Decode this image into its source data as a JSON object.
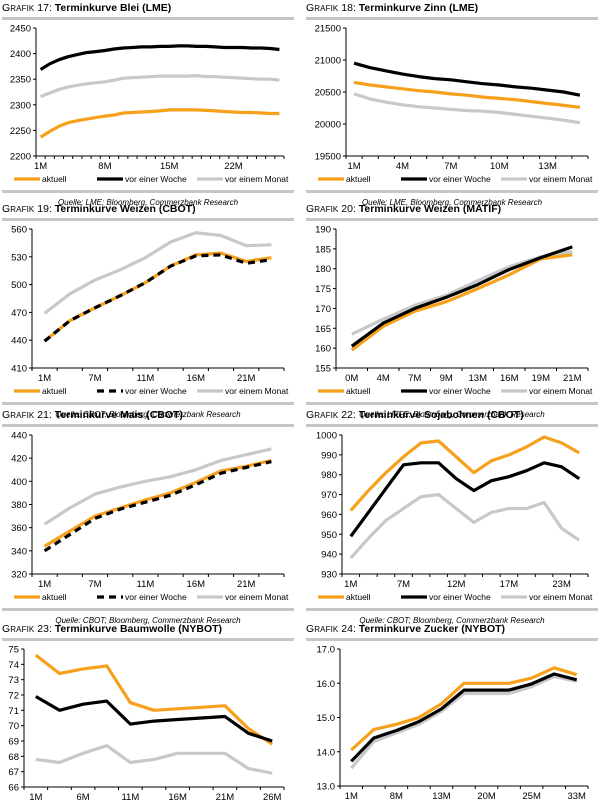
{
  "legend_labels": {
    "aktuell": "aktuell",
    "woche": "vor einer Woche",
    "monat": "vor einem Monat"
  },
  "colors": {
    "aktuell": "#f7a01c",
    "woche": "#000000",
    "monat": "#c8c8c8",
    "rule": "#c6c6c6"
  },
  "chart_data": [
    {
      "id": "g17",
      "type": "line",
      "prefix_cap": "G",
      "prefix_rest": "RAFIK",
      "number": "17:",
      "title": "Terminkurve Blei (LME)",
      "source": "Quelle: LME; Bloomberg, Commerzbank Research",
      "ylim": [
        2200,
        2450
      ],
      "yticks": [
        "2200",
        "2250",
        "2300",
        "2350",
        "2400",
        "2450"
      ],
      "yticks_values": [
        2200,
        2250,
        2300,
        2350,
        2400,
        2450
      ],
      "xtick_labels": [
        "1M",
        "8M",
        "15M",
        "22M"
      ],
      "xtick_indices": [
        0,
        7,
        14,
        21
      ],
      "n_points": 27,
      "legend_style": [
        "solid",
        "solid",
        "solid"
      ],
      "series": [
        {
          "name": "aktuell",
          "key": "aktuell",
          "values": [
            2237,
            2248,
            2258,
            2265,
            2269,
            2272,
            2275,
            2278,
            2280,
            2284,
            2285,
            2286,
            2287,
            2288,
            2290,
            2290,
            2290,
            2290,
            2289,
            2288,
            2287,
            2286,
            2285,
            2285,
            2284,
            2283,
            2283
          ]
        },
        {
          "name": "vor einer Woche",
          "key": "woche",
          "values": [
            2369,
            2380,
            2388,
            2394,
            2398,
            2402,
            2404,
            2406,
            2409,
            2411,
            2412,
            2413,
            2413,
            2414,
            2414,
            2415,
            2415,
            2414,
            2414,
            2413,
            2412,
            2412,
            2412,
            2411,
            2411,
            2410,
            2408
          ]
        },
        {
          "name": "vor einem Monat",
          "key": "monat",
          "values": [
            2316,
            2323,
            2330,
            2335,
            2338,
            2341,
            2343,
            2345,
            2348,
            2352,
            2353,
            2354,
            2355,
            2356,
            2356,
            2356,
            2356,
            2357,
            2355,
            2355,
            2354,
            2353,
            2352,
            2351,
            2350,
            2350,
            2348
          ]
        }
      ]
    },
    {
      "id": "g18",
      "type": "line",
      "prefix_cap": "G",
      "prefix_rest": "RAFIK",
      "number": "18:",
      "title": "Terminkurve Zinn (LME)",
      "source": "Quelle: LME, Bloomberg, Commerzbank Research",
      "ylim": [
        19500,
        21500
      ],
      "yticks": [
        "19500",
        "20000",
        "20500",
        "21000",
        "21500"
      ],
      "yticks_values": [
        19500,
        20000,
        20500,
        21000,
        21500
      ],
      "xtick_labels": [
        "1M",
        "4M",
        "7M",
        "10M",
        "13M"
      ],
      "xtick_indices": [
        0,
        3,
        6,
        9,
        12
      ],
      "n_points": 15,
      "legend_style": [
        "solid",
        "solid",
        "solid"
      ],
      "series": [
        {
          "name": "aktuell",
          "key": "aktuell",
          "values": [
            20650,
            20610,
            20580,
            20550,
            20520,
            20500,
            20470,
            20450,
            20420,
            20400,
            20380,
            20350,
            20320,
            20290,
            20260
          ]
        },
        {
          "name": "vor einer Woche",
          "key": "woche",
          "values": [
            20950,
            20880,
            20830,
            20780,
            20740,
            20710,
            20690,
            20660,
            20630,
            20610,
            20580,
            20560,
            20530,
            20500,
            20450
          ]
        },
        {
          "name": "vor einem Monat",
          "key": "monat",
          "values": [
            20470,
            20390,
            20340,
            20300,
            20270,
            20250,
            20230,
            20210,
            20200,
            20180,
            20150,
            20120,
            20090,
            20060,
            20020
          ]
        }
      ]
    },
    {
      "id": "g19",
      "type": "line",
      "prefix_cap": "G",
      "prefix_rest": "RAFIK",
      "number": "19:",
      "title": "Terminkurve Weizen (CBOT)",
      "source": "Quelle: CBOT; Bloomberg, Commerzbank Research",
      "ylim": [
        410,
        560
      ],
      "yticks": [
        "410",
        "440",
        "470",
        "500",
        "530",
        "560"
      ],
      "yticks_values": [
        410,
        440,
        470,
        500,
        530,
        560
      ],
      "xtick_labels": [
        "1M",
        "7M",
        "11M",
        "16M",
        "21M"
      ],
      "xtick_indices": [
        0,
        2,
        4,
        6,
        8
      ],
      "n_points": 10,
      "legend_style": [
        "solid",
        "dashed",
        "solid"
      ],
      "series": [
        {
          "name": "aktuell",
          "key": "aktuell",
          "values": [
            439,
            461,
            475,
            488,
            502,
            520,
            532,
            534,
            525,
            529
          ]
        },
        {
          "name": "vor einer Woche",
          "key": "woche",
          "values": [
            439,
            461,
            475,
            488,
            502,
            520,
            531,
            532,
            523,
            527
          ]
        },
        {
          "name": "vor einem Monat",
          "key": "monat",
          "values": [
            469,
            490,
            505,
            516,
            529,
            546,
            556,
            553,
            542,
            543
          ]
        }
      ]
    },
    {
      "id": "g20",
      "type": "line",
      "prefix_cap": "G",
      "prefix_rest": "RAFIK",
      "number": "20:",
      "title": "Terminkurve Weizen (MATIF)",
      "source": "Quelle: LIFFE; Bloomberg, Commerzbank Research",
      "ylim": [
        155,
        190
      ],
      "yticks": [
        "155",
        "160",
        "165",
        "170",
        "175",
        "180",
        "185",
        "190"
      ],
      "yticks_values": [
        155,
        160,
        165,
        170,
        175,
        180,
        185,
        190
      ],
      "xtick_labels": [
        "0M",
        "4M",
        "7M",
        "9M",
        "13M",
        "16M",
        "19M",
        "21M"
      ],
      "xtick_indices": [
        0,
        1,
        2,
        3,
        4,
        5,
        6,
        7
      ],
      "n_points": 8,
      "legend_style": [
        "solid",
        "solid",
        "solid"
      ],
      "series": [
        {
          "name": "aktuell",
          "key": "aktuell",
          "values": [
            159.5,
            165.5,
            169.3,
            171.7,
            175.0,
            178.5,
            182.5,
            183.5
          ]
        },
        {
          "name": "vor einer Woche",
          "key": "woche",
          "values": [
            160.5,
            166.3,
            170.0,
            172.8,
            176.0,
            179.8,
            182.8,
            185.5
          ]
        },
        {
          "name": "vor einem Monat",
          "key": "monat",
          "values": [
            163.5,
            167.3,
            170.8,
            173.3,
            177.0,
            180.5,
            183.0,
            184.3
          ]
        }
      ]
    },
    {
      "id": "g21",
      "type": "line",
      "prefix_cap": "G",
      "prefix_rest": "RAFIK",
      "number": "21:",
      "title": "Terminkurve Mais (CBOT)",
      "source": "Quelle: CBOT; Bloomberg, Commerzbank Research",
      "ylim": [
        320,
        440
      ],
      "yticks": [
        "320",
        "340",
        "360",
        "380",
        "400",
        "420",
        "440"
      ],
      "yticks_values": [
        320,
        340,
        360,
        380,
        400,
        420,
        440
      ],
      "xtick_labels": [
        "1M",
        "7M",
        "11M",
        "16M",
        "21M"
      ],
      "xtick_indices": [
        0,
        2,
        4,
        6,
        8
      ],
      "n_points": 10,
      "legend_style": [
        "solid",
        "dashed",
        "solid"
      ],
      "series": [
        {
          "name": "aktuell",
          "key": "aktuell",
          "values": [
            344,
            357,
            370,
            377,
            384,
            390,
            399,
            409,
            413,
            418
          ]
        },
        {
          "name": "vor einer Woche",
          "key": "woche",
          "values": [
            340,
            354,
            368,
            376,
            382,
            388,
            397,
            407,
            412,
            417
          ]
        },
        {
          "name": "vor einem Monat",
          "key": "monat",
          "values": [
            363,
            377,
            389,
            395,
            400,
            404,
            410,
            418,
            423,
            428
          ]
        }
      ]
    },
    {
      "id": "g22",
      "type": "line",
      "prefix_cap": "G",
      "prefix_rest": "RAFIK",
      "number": "22:",
      "title": "Terminkurve Sojabohnen (CBOT)",
      "source": "Quelle: CBOT; Bloomberg, Commerzbank Research",
      "ylim": [
        930,
        1000
      ],
      "yticks": [
        "930",
        "940",
        "950",
        "960",
        "970",
        "980",
        "990",
        "1000"
      ],
      "yticks_values": [
        930,
        940,
        950,
        960,
        970,
        980,
        990,
        1000
      ],
      "xtick_labels": [
        "1M",
        "7M",
        "12M",
        "17M",
        "23M"
      ],
      "xtick_indices": [
        0,
        3,
        6,
        9,
        12
      ],
      "n_points": 14,
      "legend_style": [
        "solid",
        "solid",
        "solid"
      ],
      "series": [
        {
          "name": "aktuell",
          "key": "aktuell",
          "values": [
            962,
            972,
            981,
            989,
            996,
            997,
            989,
            981,
            987,
            990,
            994,
            999,
            996,
            991
          ]
        },
        {
          "name": "vor einer Woche",
          "key": "woche",
          "values": [
            949,
            961,
            973,
            985,
            986,
            986,
            978,
            972,
            977,
            979,
            982,
            986,
            984,
            978
          ]
        },
        {
          "name": "vor einem Monat",
          "key": "monat",
          "values": [
            938,
            948,
            957,
            963,
            969,
            970,
            963,
            956,
            961,
            963,
            963,
            966,
            953,
            947
          ]
        }
      ]
    },
    {
      "id": "g23",
      "type": "line",
      "prefix_cap": "G",
      "prefix_rest": "RAFIK",
      "number": "23:",
      "title": "Terminkurve Baumwolle (NYBOT)",
      "source": "Quelle: NYBOT; Bloomberg, Commerzbank Research",
      "ylim": [
        66,
        75
      ],
      "yticks": [
        "66",
        "67",
        "68",
        "69",
        "70",
        "71",
        "72",
        "73",
        "74",
        "75"
      ],
      "yticks_values": [
        66,
        67,
        68,
        69,
        70,
        71,
        72,
        73,
        74,
        75
      ],
      "xtick_labels": [
        "1M",
        "6M",
        "11M",
        "16M",
        "21M",
        "26M"
      ],
      "xtick_indices": [
        0,
        2,
        4,
        6,
        8,
        10
      ],
      "n_points": 11,
      "legend_style": [
        "solid",
        "solid",
        "solid"
      ],
      "series": [
        {
          "name": "aktuell",
          "key": "aktuell",
          "values": [
            74.6,
            73.4,
            73.7,
            73.9,
            71.5,
            71.0,
            71.1,
            71.2,
            71.3,
            69.8,
            68.8
          ]
        },
        {
          "name": "vor einer Woche",
          "key": "woche",
          "values": [
            71.9,
            71.0,
            71.4,
            71.6,
            70.1,
            70.3,
            70.4,
            70.5,
            70.6,
            69.5,
            69.0
          ]
        },
        {
          "name": "vor einem Monat",
          "key": "monat",
          "values": [
            67.8,
            67.6,
            68.2,
            68.7,
            67.6,
            67.8,
            68.2,
            68.2,
            68.2,
            67.2,
            66.9
          ]
        }
      ]
    },
    {
      "id": "g24",
      "type": "line",
      "prefix_cap": "G",
      "prefix_rest": "RAFIK",
      "number": "24:",
      "title": "Terminkurve Zucker (NYBOT)",
      "source": "Quelle: NYBOT; Bloomberg, Commerzbank Research",
      "ylim": [
        13.0,
        17.0
      ],
      "yticks": [
        "13.0",
        "14.0",
        "15.0",
        "16.0",
        "17.0"
      ],
      "yticks_values": [
        13,
        14,
        15,
        16,
        17
      ],
      "xtick_labels": [
        "1M",
        "8M",
        "13M",
        "20M",
        "25M",
        "33M"
      ],
      "xtick_indices": [
        0,
        2,
        4,
        6,
        8,
        10
      ],
      "n_points": 11,
      "legend_style": [
        "solid",
        "solid",
        "solid"
      ],
      "series": [
        {
          "name": "aktuell",
          "key": "aktuell",
          "values": [
            14.05,
            14.65,
            14.8,
            15.0,
            15.4,
            16.0,
            16.0,
            16.0,
            16.15,
            16.45,
            16.25
          ]
        },
        {
          "name": "vor einer Woche",
          "key": "woche",
          "values": [
            13.72,
            14.4,
            14.62,
            14.88,
            15.25,
            15.8,
            15.8,
            15.8,
            15.98,
            16.27,
            16.1
          ]
        },
        {
          "name": "vor einem Monat",
          "key": "monat",
          "values": [
            13.52,
            14.3,
            14.55,
            14.8,
            15.18,
            15.7,
            15.7,
            15.7,
            15.9,
            16.2,
            16.05
          ]
        }
      ]
    }
  ]
}
